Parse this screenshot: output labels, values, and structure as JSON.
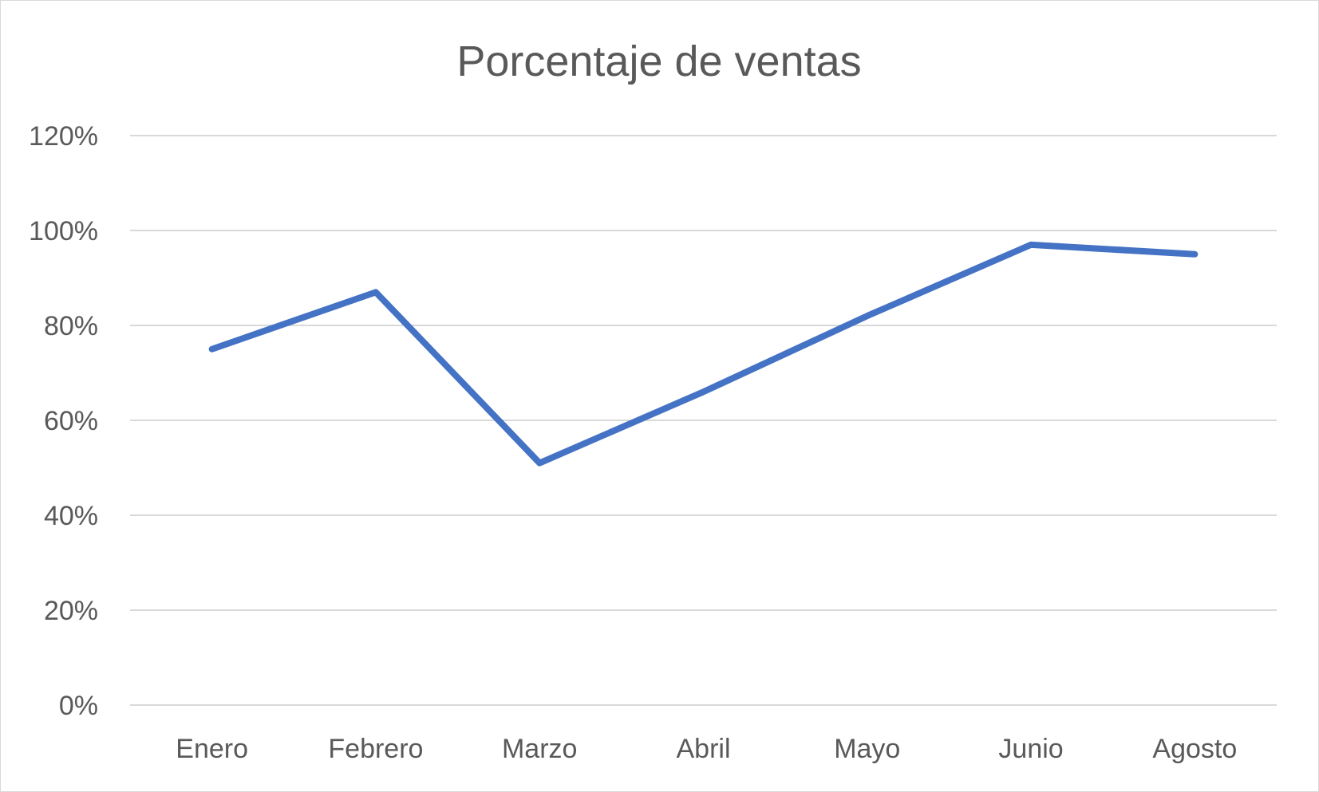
{
  "chart_data": {
    "type": "line",
    "title": "Porcentaje de ventas",
    "xlabel": "",
    "ylabel": "",
    "categories": [
      "Enero",
      "Febrero",
      "Marzo",
      "Abril",
      "Mayo",
      "Junio",
      "Agosto"
    ],
    "series": [
      {
        "values": [
          0.75,
          0.87,
          0.51,
          0.66,
          0.82,
          0.97,
          0.95
        ],
        "color": "#4472c4"
      }
    ],
    "ylim": [
      0,
      1.2
    ],
    "yticks": [
      0,
      0.2,
      0.4,
      0.6,
      0.8,
      1.0,
      1.2
    ],
    "ytick_labels": [
      "0%",
      "20%",
      "40%",
      "60%",
      "80%",
      "100%",
      "120%"
    ],
    "grid": true,
    "legend": "none"
  }
}
